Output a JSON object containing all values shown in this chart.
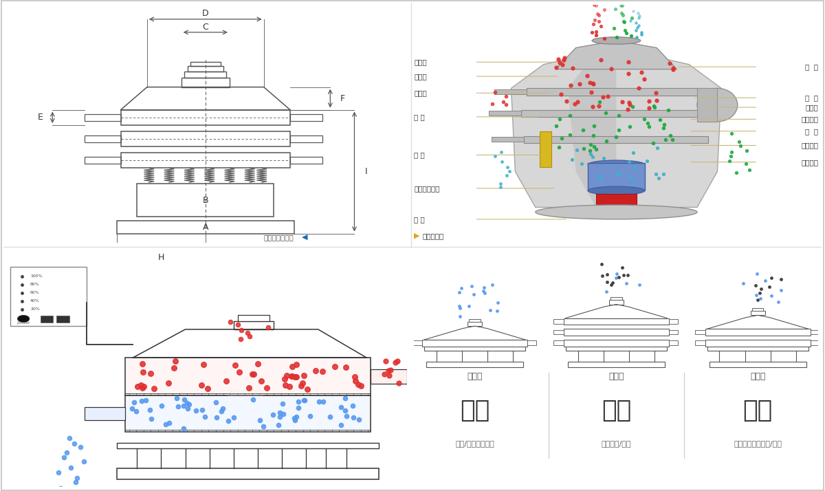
{
  "figure_width": 12.0,
  "figure_height": 7.14,
  "dpi": 100,
  "bg": "#ffffff",
  "sep_color": "#dddddd",
  "border_color": "#cccccc",
  "top_left": {
    "dim_labels": [
      "D",
      "C",
      "F",
      "E",
      "B",
      "A",
      "H",
      "I"
    ],
    "footer_text": "外形尺寸示意圖",
    "arrow_color": "#1a6eb5",
    "line_color": "#555555"
  },
  "top_right": {
    "left_labels": [
      "进料口",
      "防尘盖",
      "出料口",
      "束 环",
      "弹 簧",
      "运输固定螺栓",
      "机 座"
    ],
    "right_labels": [
      "筛  网",
      "网  架",
      "加重块",
      "上部重锤",
      "筛  盘",
      "振动电机",
      "下部重锤"
    ],
    "footer_text": "结构示意图",
    "arrow_color": "#e8a020",
    "line_color": "#c8b878",
    "text_color": "#333333"
  },
  "bottom_left": {
    "red_color": "#e03030",
    "blue_color": "#5599ee",
    "line_color": "#333333"
  },
  "bottom_right": {
    "type_labels": [
      "单层式",
      "三层式",
      "双层式"
    ],
    "titles": [
      "分级",
      "过滤",
      "除杂"
    ],
    "subtitles": [
      "颗粒/粉末准确分级",
      "去除异物/结块",
      "去除液体中的颗粒/异物"
    ],
    "n_layers": [
      1,
      3,
      2
    ],
    "title_fontsize": 26,
    "sub_fontsize": 8,
    "type_fontsize": 9,
    "title_color": "#333333",
    "sub_color": "#666666",
    "line_color": "#555555",
    "div_color": "#cccccc",
    "particle_colors_0": [
      "#5599ee"
    ],
    "particle_colors_1": [
      "#333333",
      "#5599ee"
    ],
    "particle_colors_2": [
      "#5599ee",
      "#333333"
    ]
  }
}
